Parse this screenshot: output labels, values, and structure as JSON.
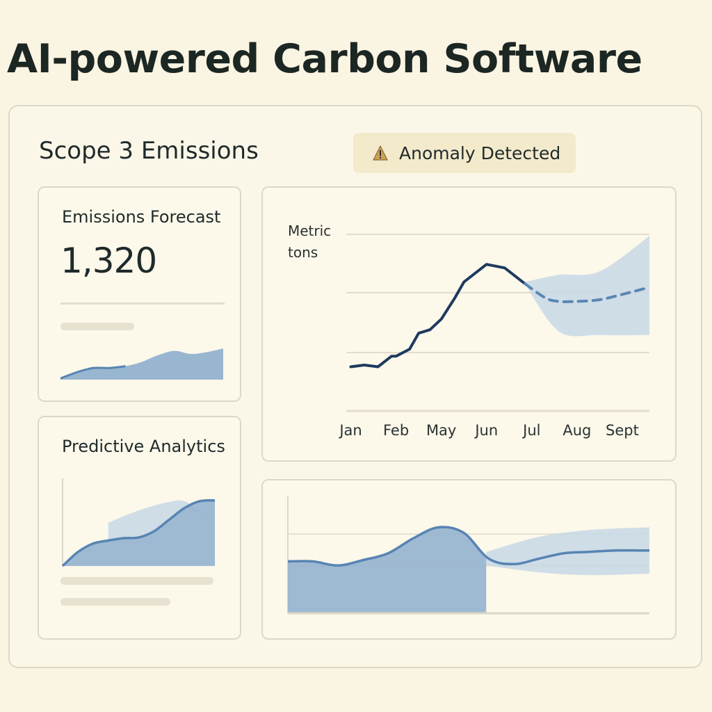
{
  "page": {
    "title": "AI-powered Carbon Software"
  },
  "dashboard": {
    "section_title": "Scope 3 Emissions",
    "anomaly_badge": {
      "icon": "warning-icon",
      "text": "Anomaly Detected"
    }
  },
  "forecast_card": {
    "label": "Emissions Forecast",
    "value": "1,320"
  },
  "predictive_card": {
    "label": "Predictive Analytics"
  },
  "colors": {
    "background": "#faf4e3",
    "line_dark": "#1e3a5f",
    "forecast_line": "#5b86b4",
    "area_fill": "#93b2cf",
    "band_fill": "#c7d8e6",
    "badge_bg": "#f3eacc"
  },
  "chart_data": [
    {
      "type": "line",
      "title": "",
      "ylabel_lines": [
        "Metric",
        "tons"
      ],
      "categories": [
        "Jan",
        "Feb",
        "May",
        "Jun",
        "Jul",
        "Aug",
        "Sept"
      ],
      "series": [
        {
          "x": [
            0,
            0.3,
            0.6,
            0.9,
            1.0,
            1.3,
            1.5,
            1.75,
            2.0,
            2.3,
            2.5,
            3.0,
            3.4,
            3.85
          ],
          "values": [
            25,
            26,
            25,
            31,
            31,
            35,
            44,
            46,
            52,
            64,
            73,
            83,
            81,
            72
          ]
        },
        {
          "style": "dashed",
          "x": [
            3.85,
            4.3,
            4.6,
            5.0,
            5.5,
            6.0,
            6.6
          ],
          "values": [
            72,
            64,
            62,
            62,
            63,
            66,
            70
          ]
        }
      ],
      "band": {
        "x": [
          3.85,
          4.6,
          5.5,
          6.6
        ],
        "upper": [
          73,
          77,
          79,
          99
        ],
        "lower": [
          72,
          45,
          43,
          43
        ]
      },
      "ylim": [
        0,
        100
      ],
      "grid": true
    },
    {
      "type": "area",
      "title": "",
      "series": [
        {
          "x": [
            0,
            0.5,
            1.0,
            1.5,
            2.0,
            2.5,
            3.0,
            3.5,
            4.0,
            4.5,
            5.0,
            5.5,
            6.0,
            6.5,
            7.0,
            7.2
          ],
          "values": [
            38,
            38,
            35,
            39,
            44,
            55,
            63,
            59,
            40,
            36,
            40,
            44,
            45,
            46,
            46,
            46
          ]
        }
      ],
      "band": {
        "x": [
          3.95,
          5.0,
          6.0,
          7.2
        ],
        "upper": [
          45,
          56,
          61,
          63
        ],
        "lower": [
          35,
          30,
          28,
          29
        ]
      },
      "ylim": [
        0,
        80
      ],
      "grid": true
    },
    {
      "type": "area",
      "title": "",
      "series": [
        {
          "x": [
            0,
            1,
            2,
            3,
            4,
            5,
            6,
            7,
            8,
            9,
            10
          ],
          "values": [
            2,
            12,
            19,
            19,
            22,
            29,
            40,
            47,
            42,
            45,
            51
          ]
        }
      ],
      "ylim": [
        0,
        100
      ],
      "grid": false
    },
    {
      "type": "area",
      "title": "",
      "series": [
        {
          "x": [
            0,
            1,
            2,
            3,
            4,
            5,
            6,
            7,
            8,
            9,
            10
          ],
          "values": [
            0,
            18,
            29,
            33,
            36,
            37,
            45,
            60,
            75,
            84,
            85
          ]
        }
      ],
      "band": {
        "x": [
          3,
          5,
          7,
          8,
          9,
          10
        ],
        "upper": [
          56,
          72,
          83,
          84,
          72,
          68
        ],
        "lower": [
          33,
          37,
          60,
          75,
          69,
          68
        ]
      },
      "ylim": [
        0,
        100
      ],
      "grid": false
    }
  ]
}
